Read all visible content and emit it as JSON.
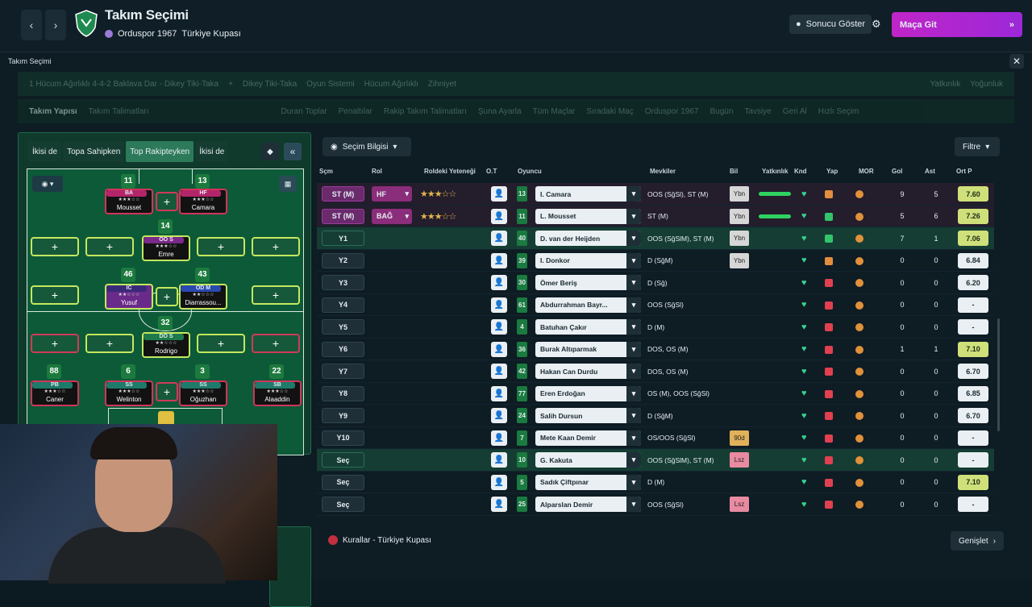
{
  "header": {
    "title": "Takım Seçimi",
    "club": "Orduspor 1967",
    "competition": "Türkiye Kupası",
    "show_result": "Sonucu Göster",
    "go_match": "Maça Git"
  },
  "panel": {
    "title": "Takım Seçimi",
    "strip1": [
      "1 Hücum Ağırlıklı 4-4-2 Baklava Dar - Dikey Tiki-Taka",
      "Dikey Tiki-Taka",
      "Oyun Sistemi",
      "Hücum Ağırlıklı",
      "Zihniyet",
      "Yatkınlık",
      "Yoğunluk"
    ],
    "strip2": [
      "Takım Yapısı",
      "Takım Talimatları",
      "Duran Toplar",
      "Penaltılar",
      "Rakip Takım Talimatları",
      "Şuna Ayarla",
      "Tüm Maçlar",
      "Sıradaki Maç",
      "Orduspor 1967",
      "Bugün",
      "Tavsiye",
      "Geri Al",
      "Hızlı Seçim"
    ]
  },
  "tactics": {
    "tabs": [
      "İkisi de",
      "Topa Sahipken",
      "Top Rakipteyken",
      "İkisi de"
    ]
  },
  "pitch": {
    "players": [
      {
        "num": "11",
        "role": "BA",
        "name": "Mousset"
      },
      {
        "num": "13",
        "role": "HF",
        "name": "Camara"
      },
      {
        "num": "14",
        "role": "OO S",
        "name": "Emre"
      },
      {
        "num": "46",
        "role": "IC",
        "name": "Yusuf"
      },
      {
        "num": "43",
        "role": "OD M",
        "name": "Diarrassou..."
      },
      {
        "num": "32",
        "role": "DO S",
        "name": "Rodrigo"
      },
      {
        "num": "88",
        "role": "PB",
        "name": "Caner"
      },
      {
        "num": "6",
        "role": "SS",
        "name": "Welinton"
      },
      {
        "num": "3",
        "role": "SS",
        "name": "Oğuzhan"
      },
      {
        "num": "22",
        "role": "SB",
        "name": "Alaaddin"
      }
    ]
  },
  "list": {
    "selection_info": "Seçim Bilgisi",
    "filter": "Filtre",
    "columns": [
      "Sçm",
      "Rol",
      "Roldeki Yeteneği",
      "O.T",
      "Oyuncu",
      "Mevkiler",
      "Bil",
      "Yatkınlık",
      "Knd",
      "Yap",
      "MOR",
      "Gol",
      "Ast",
      "Ort P"
    ],
    "rows": [
      {
        "pos": "ST (M)",
        "role": "HF",
        "stars": "★★★☆☆",
        "num": "13",
        "name": "I. Camara",
        "positions": "OOS (SğSl), ST (M)",
        "bil": "Ybn",
        "gol": "9",
        "ast": "5",
        "rating": "7.60"
      },
      {
        "pos": "ST (M)",
        "role": "BAĞ",
        "stars": "★★★☆☆",
        "num": "11",
        "name": "L. Mousset",
        "positions": "ST (M)",
        "bil": "Ybn",
        "gol": "5",
        "ast": "6",
        "rating": "7.26"
      },
      {
        "pos": "Y1",
        "num": "40",
        "name": "D. van der Heijden",
        "positions": "OOS (SğSlM), ST (M)",
        "bil": "Ybn",
        "gol": "7",
        "ast": "1",
        "rating": "7.06"
      },
      {
        "pos": "Y2",
        "num": "39",
        "name": "I. Donkor",
        "positions": "D (SğM)",
        "bil": "Ybn",
        "gol": "0",
        "ast": "0",
        "rating": "6.84"
      },
      {
        "pos": "Y3",
        "num": "30",
        "name": "Ömer Beriş",
        "positions": "D (Sğ)",
        "bil": "",
        "gol": "0",
        "ast": "0",
        "rating": "6.20"
      },
      {
        "pos": "Y4",
        "num": "61",
        "name": "Abdurrahman Bayr...",
        "positions": "OOS (SğSl)",
        "bil": "",
        "gol": "0",
        "ast": "0",
        "rating": "-"
      },
      {
        "pos": "Y5",
        "num": "4",
        "name": "Batuhan Çakır",
        "positions": "D (M)",
        "bil": "",
        "gol": "0",
        "ast": "0",
        "rating": "-"
      },
      {
        "pos": "Y6",
        "num": "36",
        "name": "Burak Altıparmak",
        "positions": "DOS, OS (M)",
        "bil": "",
        "gol": "1",
        "ast": "1",
        "rating": "7.10"
      },
      {
        "pos": "Y7",
        "num": "42",
        "name": "Hakan Can Durdu",
        "positions": "DOS, OS (M)",
        "bil": "",
        "gol": "0",
        "ast": "0",
        "rating": "6.70"
      },
      {
        "pos": "Y8",
        "num": "77",
        "name": "Eren Erdoğan",
        "positions": "OS (M), OOS (SğSl)",
        "bil": "",
        "gol": "0",
        "ast": "0",
        "rating": "6.85"
      },
      {
        "pos": "Y9",
        "num": "24",
        "name": "Salih Dursun",
        "positions": "D (SğM)",
        "bil": "",
        "gol": "0",
        "ast": "0",
        "rating": "6.70"
      },
      {
        "pos": "Y10",
        "num": "7",
        "name": "Mete Kaan Demir",
        "positions": "OS/OOS (SğSl)",
        "bil": "90d",
        "gol": "0",
        "ast": "0",
        "rating": "-"
      },
      {
        "pos": "Seç",
        "num": "10",
        "name": "G. Kakuta",
        "positions": "OOS (SğSlM), ST (M)",
        "bil": "Lsz",
        "gol": "0",
        "ast": "0",
        "rating": "-"
      },
      {
        "pos": "Seç",
        "num": "5",
        "name": "Sadık Çiftpınar",
        "positions": "D (M)",
        "bil": "",
        "gol": "0",
        "ast": "0",
        "rating": "7.10"
      },
      {
        "pos": "Seç",
        "num": "25",
        "name": "Alparslan Demir",
        "positions": "OOS (SğSl)",
        "bil": "Lsz",
        "gol": "0",
        "ast": "0",
        "rating": "-"
      }
    ]
  },
  "footer": {
    "rules": "Kurallar - Türkiye Kupası",
    "expand": "Genişlet"
  }
}
